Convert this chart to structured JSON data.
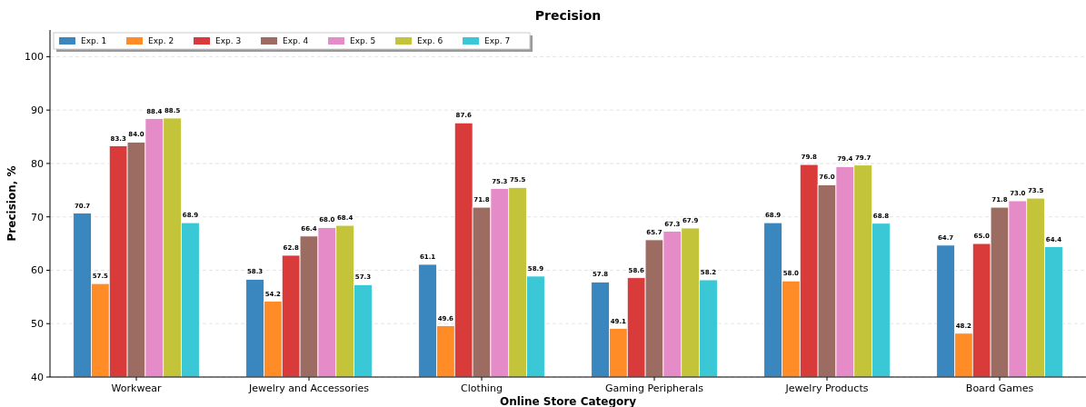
{
  "chart_data": {
    "type": "bar",
    "title": "Precision",
    "xlabel": "Online Store Category",
    "ylabel": "Precision, %",
    "categories": [
      "Workwear",
      "Jewelry and Accessories",
      "Clothing",
      "Gaming Peripherals",
      "Jewelry Products",
      "Board Games"
    ],
    "series": [
      {
        "name": "Exp. 1",
        "color": "#3a87c0",
        "values": [
          70.7,
          58.3,
          61.1,
          57.8,
          68.9,
          64.7
        ],
        "value_labels": [
          "70.7",
          "58.3",
          "61.1",
          "57.8",
          "68.9",
          "64.7"
        ]
      },
      {
        "name": "Exp. 2",
        "color": "#ff8c26",
        "values": [
          57.5,
          54.2,
          49.6,
          49.1,
          58.0,
          48.2
        ],
        "value_labels": [
          "57.5",
          "54.2",
          "49.6",
          "49.1",
          "58.0",
          "48.2"
        ]
      },
      {
        "name": "Exp. 3",
        "color": "#d93b3b",
        "values": [
          83.3,
          62.8,
          87.6,
          58.6,
          79.8,
          65.0
        ],
        "value_labels": [
          "83.3",
          "62.8",
          "87.6",
          "58.6",
          "79.8",
          "65.0"
        ]
      },
      {
        "name": "Exp. 4",
        "color": "#9c6b62",
        "values": [
          84.0,
          66.4,
          71.8,
          65.7,
          76.0,
          71.8
        ],
        "value_labels": [
          "84.0",
          "66.4",
          "71.8",
          "65.7",
          "76.0",
          "71.8"
        ]
      },
      {
        "name": "Exp. 5",
        "color": "#e58bc8",
        "values": [
          88.4,
          68.0,
          75.3,
          67.3,
          79.4,
          73.0
        ],
        "value_labels": [
          "88.4",
          "68.0",
          "75.3",
          "67.3",
          "79.4",
          "73.0"
        ]
      },
      {
        "name": "Exp. 6",
        "color": "#c4c43a",
        "values": [
          88.5,
          68.4,
          75.5,
          67.9,
          79.7,
          73.5
        ],
        "value_labels": [
          "88.5",
          "68.4",
          "75.5",
          "67.9",
          "79.7",
          "73.5"
        ]
      },
      {
        "name": "Exp. 7",
        "color": "#3ac8d6",
        "values": [
          68.9,
          57.3,
          58.9,
          58.2,
          68.8,
          64.4
        ],
        "value_labels": [
          "68.9",
          "57.3",
          "58.9",
          "58.2",
          "68.8",
          "64.4"
        ]
      }
    ],
    "ylim": [
      40,
      105
    ],
    "yticks": [
      40,
      50,
      60,
      70,
      80,
      90,
      100
    ],
    "grid": "y",
    "legend": "top left"
  }
}
